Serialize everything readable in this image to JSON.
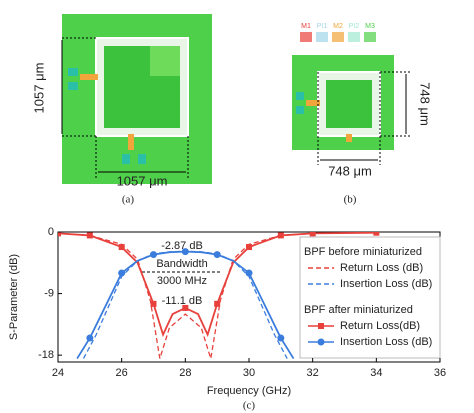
{
  "figure_a": {
    "dim_vertical": "1057 μm",
    "dim_horizontal": "1057 μm",
    "caption": "(a)"
  },
  "figure_b": {
    "layers": [
      "M1",
      "PI1",
      "M2",
      "PI2",
      "M3"
    ],
    "dim_vertical": "748 μm",
    "dim_horizontal": "748 μm",
    "caption": "(b)"
  },
  "chart_data": {
    "type": "line",
    "xlabel": "Frequency (GHz)",
    "ylabel": "S-Parameter (dB)",
    "xlim": [
      24,
      36
    ],
    "xticks": [
      24,
      26,
      28,
      30,
      32,
      34,
      36
    ],
    "ylim": [
      -19,
      0
    ],
    "yticks": [
      -18,
      -9,
      0
    ],
    "legend_groups": [
      "BPF before miniaturized",
      "BPF after miniaturized"
    ],
    "annotations": [
      "-2.87 dB",
      "Bandwidth",
      "3000 MHz",
      "-11.1 dB"
    ],
    "caption": "(c)",
    "series": [
      {
        "name": "Return Loss (dB)",
        "group": 0,
        "color": "#e8413c",
        "dash": true,
        "x": [
          24,
          25,
          26,
          26.5,
          26.9,
          27.2,
          27.5,
          28,
          28.5,
          28.8,
          29.1,
          29.5,
          30,
          31,
          32,
          34
        ],
        "values": [
          -0.2,
          -0.5,
          -1.8,
          -4,
          -10,
          -18.5,
          -14,
          -12,
          -14,
          -18.5,
          -10,
          -4,
          -1.8,
          -0.5,
          -0.2,
          -0.1
        ]
      },
      {
        "name": "Insertion Loss (dB)",
        "group": 0,
        "color": "#3b7ddd",
        "dash": true,
        "x": [
          24.8,
          25.2,
          26,
          26.5,
          27,
          27.5,
          28,
          28.5,
          29,
          29.5,
          30,
          30.8,
          31.2
        ],
        "values": [
          -18.5,
          -15,
          -6.5,
          -4.2,
          -3.2,
          -2.9,
          -2.8,
          -2.9,
          -3.2,
          -4.2,
          -6.5,
          -15,
          -18.5
        ]
      },
      {
        "name": "Return Loss(dB)",
        "group": 1,
        "color": "#e8413c",
        "marker": "square",
        "x": [
          24,
          25,
          26,
          26.5,
          27,
          27.3,
          27.6,
          28,
          28.4,
          28.7,
          29,
          29.5,
          30,
          31,
          32,
          34
        ],
        "values": [
          -0.2,
          -0.5,
          -2.2,
          -4.5,
          -10.5,
          -15,
          -12,
          -11.1,
          -12,
          -15,
          -10.5,
          -4.5,
          -2.2,
          -0.5,
          -0.2,
          -0.1
        ]
      },
      {
        "name": "Insertion Loss (dB)",
        "group": 1,
        "color": "#3b7ddd",
        "marker": "circle",
        "x": [
          24.6,
          25,
          26,
          26.5,
          27,
          27.5,
          28,
          28.5,
          29,
          29.5,
          30,
          31,
          31.4
        ],
        "values": [
          -18.5,
          -15.5,
          -6,
          -4.2,
          -3.3,
          -2.95,
          -2.87,
          -2.95,
          -3.3,
          -4.2,
          -6,
          -15.5,
          -18.5
        ]
      }
    ]
  }
}
